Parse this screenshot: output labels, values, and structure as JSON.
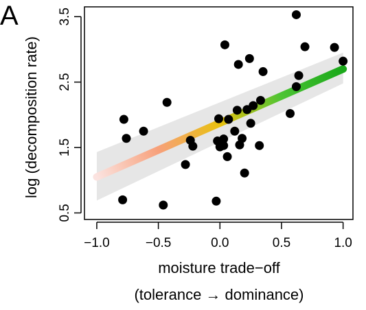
{
  "chart_data": {
    "type": "scatter",
    "panel_label": "A",
    "xlabel_line1": "moisture trade−off",
    "xlabel_line2": "(tolerance → dominance)",
    "ylabel": "log (decomposition rate)",
    "xlim": [
      -1.1,
      1.08
    ],
    "ylim": [
      0.4,
      3.65
    ],
    "x_ticks": [
      -1.0,
      -0.5,
      0.0,
      0.5,
      1.0
    ],
    "x_tick_labels": [
      "−1.0",
      "−0.5",
      "0.0",
      "0.5",
      "1.0"
    ],
    "y_ticks": [
      0.5,
      1.5,
      2.5,
      3.5
    ],
    "y_tick_labels": [
      "0.5",
      "1.5",
      "2.5",
      "3.5"
    ],
    "grid": false,
    "fit": {
      "x": [
        -1.0,
        1.0
      ],
      "y": [
        1.05,
        2.7
      ],
      "ci_lower_ends": [
        0.69,
        2.48
      ],
      "ci_upper_ends": [
        1.43,
        2.95
      ],
      "gradient_colors": [
        "#fbe3e0",
        "#f7a07a",
        "#e8c10f",
        "#4cc434",
        "#1aa81a"
      ],
      "ci_color": "#e6e6e6"
    },
    "point_color": "#000000",
    "points": [
      {
        "x": -0.78,
        "y": 1.93
      },
      {
        "x": -0.76,
        "y": 1.64
      },
      {
        "x": -0.62,
        "y": 1.75
      },
      {
        "x": -0.79,
        "y": 0.7
      },
      {
        "x": -0.46,
        "y": 0.62
      },
      {
        "x": -0.43,
        "y": 2.19
      },
      {
        "x": -0.28,
        "y": 1.24
      },
      {
        "x": -0.24,
        "y": 1.61
      },
      {
        "x": -0.22,
        "y": 1.52
      },
      {
        "x": -0.03,
        "y": 0.68
      },
      {
        "x": -0.02,
        "y": 1.6
      },
      {
        "x": -0.01,
        "y": 1.94
      },
      {
        "x": 0.0,
        "y": 1.51
      },
      {
        "x": 0.03,
        "y": 1.63
      },
      {
        "x": 0.03,
        "y": 1.53
      },
      {
        "x": 0.06,
        "y": 1.36
      },
      {
        "x": 0.07,
        "y": 1.93
      },
      {
        "x": 0.12,
        "y": 1.75
      },
      {
        "x": 0.14,
        "y": 2.07
      },
      {
        "x": 0.16,
        "y": 1.54
      },
      {
        "x": 0.18,
        "y": 1.64
      },
      {
        "x": 0.2,
        "y": 1.11
      },
      {
        "x": 0.22,
        "y": 2.08
      },
      {
        "x": 0.25,
        "y": 1.87
      },
      {
        "x": 0.27,
        "y": 2.14
      },
      {
        "x": 0.32,
        "y": 1.53
      },
      {
        "x": 0.33,
        "y": 2.22
      },
      {
        "x": 0.35,
        "y": 2.66
      },
      {
        "x": 0.15,
        "y": 2.77
      },
      {
        "x": 0.24,
        "y": 2.86
      },
      {
        "x": 0.04,
        "y": 3.07
      },
      {
        "x": 0.57,
        "y": 2.02
      },
      {
        "x": 0.62,
        "y": 2.43
      },
      {
        "x": 0.64,
        "y": 2.6
      },
      {
        "x": 0.62,
        "y": 3.53
      },
      {
        "x": 0.69,
        "y": 3.04
      },
      {
        "x": 0.93,
        "y": 3.03
      },
      {
        "x": 1.0,
        "y": 2.82
      }
    ]
  }
}
